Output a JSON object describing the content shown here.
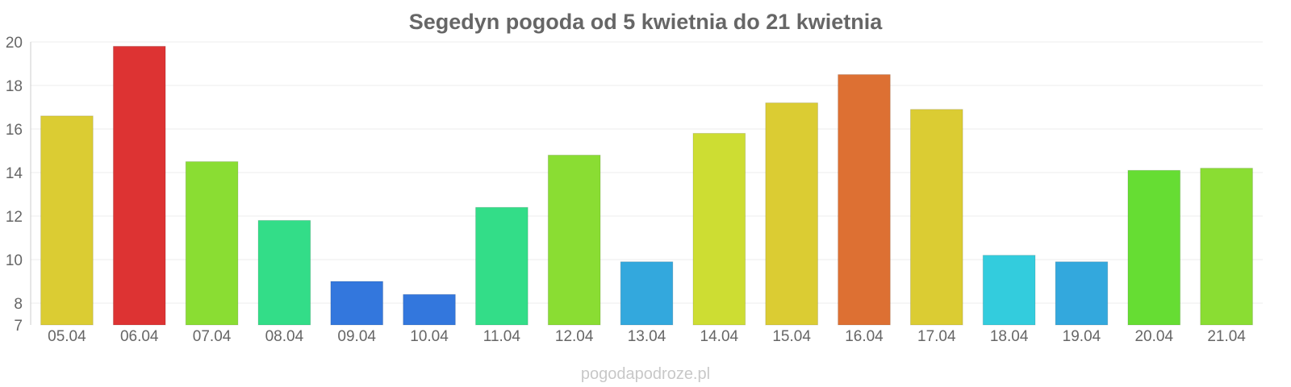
{
  "chart_data": {
    "type": "bar",
    "title": "Segedyn pogoda od 5 kwietnia do 21 kwietnia",
    "xlabel": "",
    "ylabel": "",
    "ylim": [
      7,
      20
    ],
    "yticks": [
      7,
      8,
      10,
      12,
      14,
      16,
      18,
      20
    ],
    "grid": true,
    "legend": "none",
    "categories": [
      "05.04",
      "06.04",
      "07.04",
      "08.04",
      "09.04",
      "10.04",
      "11.04",
      "12.04",
      "13.04",
      "14.04",
      "15.04",
      "16.04",
      "17.04",
      "18.04",
      "19.04",
      "20.04",
      "21.04"
    ],
    "values": [
      16.6,
      19.8,
      14.5,
      11.8,
      9.0,
      8.4,
      12.4,
      14.8,
      9.9,
      15.8,
      17.2,
      18.5,
      16.9,
      10.2,
      9.9,
      14.1,
      14.2
    ],
    "colors": [
      "#dbcc33",
      "#dd3333",
      "#8add33",
      "#33dd88",
      "#3377dd",
      "#3377dd",
      "#33dd88",
      "#8add33",
      "#33a8dd",
      "#cddd33",
      "#dbcc33",
      "#dd7033",
      "#dbcc33",
      "#33ccdd",
      "#33a8dd",
      "#66dd33",
      "#8add33"
    ]
  },
  "footer": {
    "watermark": "pogodapodroze.pl"
  }
}
